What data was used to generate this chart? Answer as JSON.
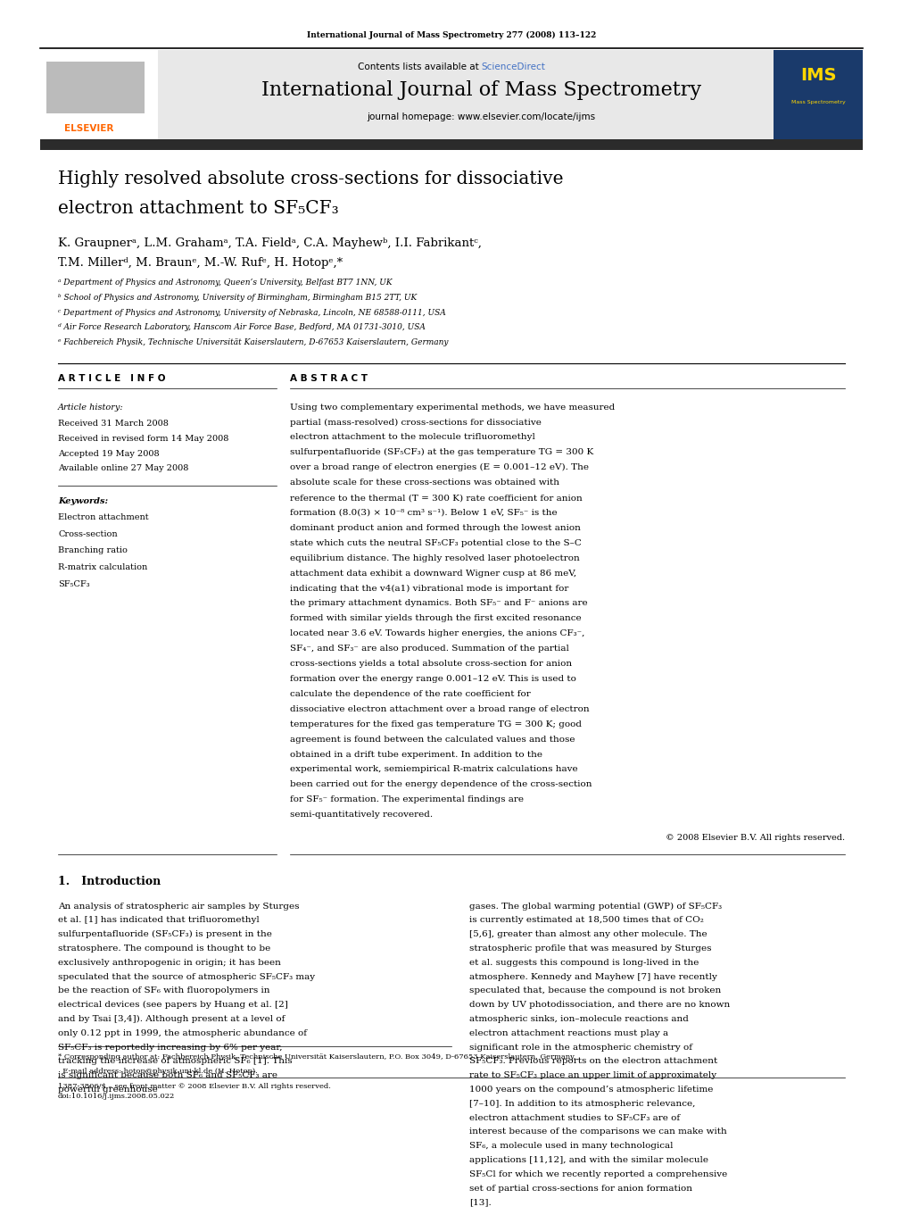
{
  "page_width": 9.92,
  "page_height": 13.23,
  "bg_color": "#ffffff",
  "header_journal_line": "International Journal of Mass Spectrometry 277 (2008) 113–122",
  "journal_title": "International Journal of Mass Spectrometry",
  "journal_homepage": "journal homepage: www.elsevier.com/locate/ijms",
  "elsevier_color": "#FF6600",
  "sciencedirect_color": "#4472C4",
  "header_bg": "#E8E8E8",
  "dark_bar_color": "#2B2B2B",
  "article_title_line1": "Highly resolved absolute cross-sections for dissociative",
  "article_title_line2": "electron attachment to SF₅CF₃",
  "authors": "K. Graupnerᵃ, L.M. Grahamᵃ, T.A. Fieldᵃ, C.A. Mayhewᵇ, I.I. Fabrikantᶜ,",
  "authors2": "T.M. Millerᵈ, M. Braunᵉ, M.-W. Rufᵉ, H. Hotopᵉ,*",
  "affil_a": "ᵃ Department of Physics and Astronomy, Queen’s University, Belfast BT7 1NN, UK",
  "affil_b": "ᵇ School of Physics and Astronomy, University of Birmingham, Birmingham B15 2TT, UK",
  "affil_c": "ᶜ Department of Physics and Astronomy, University of Nebraska, Lincoln, NE 68588-0111, USA",
  "affil_d": "ᵈ Air Force Research Laboratory, Hanscom Air Force Base, Bedford, MA 01731-3010, USA",
  "affil_e": "ᵉ Fachbereich Physik, Technische Universität Kaiserslautern, D-67653 Kaiserslautern, Germany",
  "article_info_header": "A R T I C L E   I N F O",
  "abstract_header": "A B S T R A C T",
  "article_history_label": "Article history:",
  "received1": "Received 31 March 2008",
  "received2": "Received in revised form 14 May 2008",
  "accepted": "Accepted 19 May 2008",
  "available": "Available online 27 May 2008",
  "keywords_label": "Keywords:",
  "kw1": "Electron attachment",
  "kw2": "Cross-section",
  "kw3": "Branching ratio",
  "kw4": "R-matrix calculation",
  "kw5": "SF₅CF₃",
  "abstract_text": "Using two complementary experimental methods, we have measured partial (mass-resolved) cross-sections for dissociative electron attachment to the molecule trifluoromethyl sulfurpentafluoride (SF₅CF₃) at the gas temperature TG = 300 K over a broad range of electron energies (E = 0.001–12 eV). The absolute scale for these cross-sections was obtained with reference to the thermal (T = 300 K) rate coefficient for anion formation (8.0(3) × 10⁻⁸ cm³ s⁻¹). Below 1 eV, SF₅⁻ is the dominant product anion and formed through the lowest anion state which cuts the neutral SF₅CF₃ potential close to the S–C equilibrium distance. The highly resolved laser photoelectron attachment data exhibit a downward Wigner cusp at 86 meV, indicating that the v4(a1) vibrational mode is important for the primary attachment dynamics. Both SF₅⁻ and F⁻ anions are formed with similar yields through the first excited resonance located near 3.6 eV. Towards higher energies, the anions CF₃⁻, SF₄⁻, and SF₃⁻ are also produced. Summation of the partial cross-sections yields a total absolute cross-section for anion formation over the energy range 0.001–12 eV. This is used to calculate the dependence of the rate coefficient for dissociative electron attachment over a broad range of electron temperatures for the fixed gas temperature TG = 300 K; good agreement is found between the calculated values and those obtained in a drift tube experiment. In addition to the experimental work, semiempirical R-matrix calculations have been carried out for the energy dependence of the cross-section for SF₅⁻ formation. The experimental findings are semi-quantitatively recovered.",
  "copyright": "© 2008 Elsevier B.V. All rights reserved.",
  "intro_header": "1.   Introduction",
  "intro_text1": "An analysis of stratospheric air samples by Sturges et al. [1] has indicated that trifluoromethyl sulfurpentafluoride (SF₅CF₃) is present in the stratosphere. The compound is thought to be exclusively anthropogenic in origin; it has been speculated that the source of atmospheric SF₅CF₃ may be the reaction of SF₆ with fluoropolymers in electrical devices (see papers by Huang et al. [2] and by Tsai [3,4]). Although present at a level of only 0.12 ppt in 1999, the atmospheric abundance of SF₅CF₃ is reportedly increasing by 6% per year, tracking the increase of atmospheric SF₆ [1]. This is significant because both SF₆ and SF₅CF₃ are powerful greenhouse",
  "intro_text2": "gases. The global warming potential (GWP) of SF₅CF₃ is currently estimated at 18,500 times that of CO₂ [5,6], greater than almost any other molecule. The stratospheric profile that was measured by Sturges et al. suggests this compound is long-lived in the atmosphere. Kennedy and Mayhew [7] have recently speculated that, because the compound is not broken down by UV photodissociation, and there are no known atmospheric sinks, ion–molecule reactions and electron attachment reactions must play a significant role in the atmospheric chemistry of SF₅CF₃. Previous reports on the electron attachment rate to SF₅CF₃ place an upper limit of approximately 1000 years on the compound’s atmospheric lifetime [7–10]. In addition to its atmospheric relevance, electron attachment studies to SF₅CF₃ are of interest because of the comparisons we can make with SF₆, a molecule used in many technological applications [11,12], and with the similar molecule SF₅Cl for which we recently reported a comprehensive set of partial cross-sections for anion formation [13].",
  "footnote_star": "* Corresponding author at: Fachbereich Physik, Technische Universität Kaiserslautern, P.O. Box 3049, D-67653 Kaiserslautern, Germany.",
  "footnote_email": "  E-mail address: hotop@physik.uni-kl.de (H. Hotop).",
  "footer_issn": "1387-3806/$ – see front matter © 2008 Elsevier B.V. All rights reserved.",
  "footer_doi": "doi:10.1016/j.ijms.2008.05.022"
}
